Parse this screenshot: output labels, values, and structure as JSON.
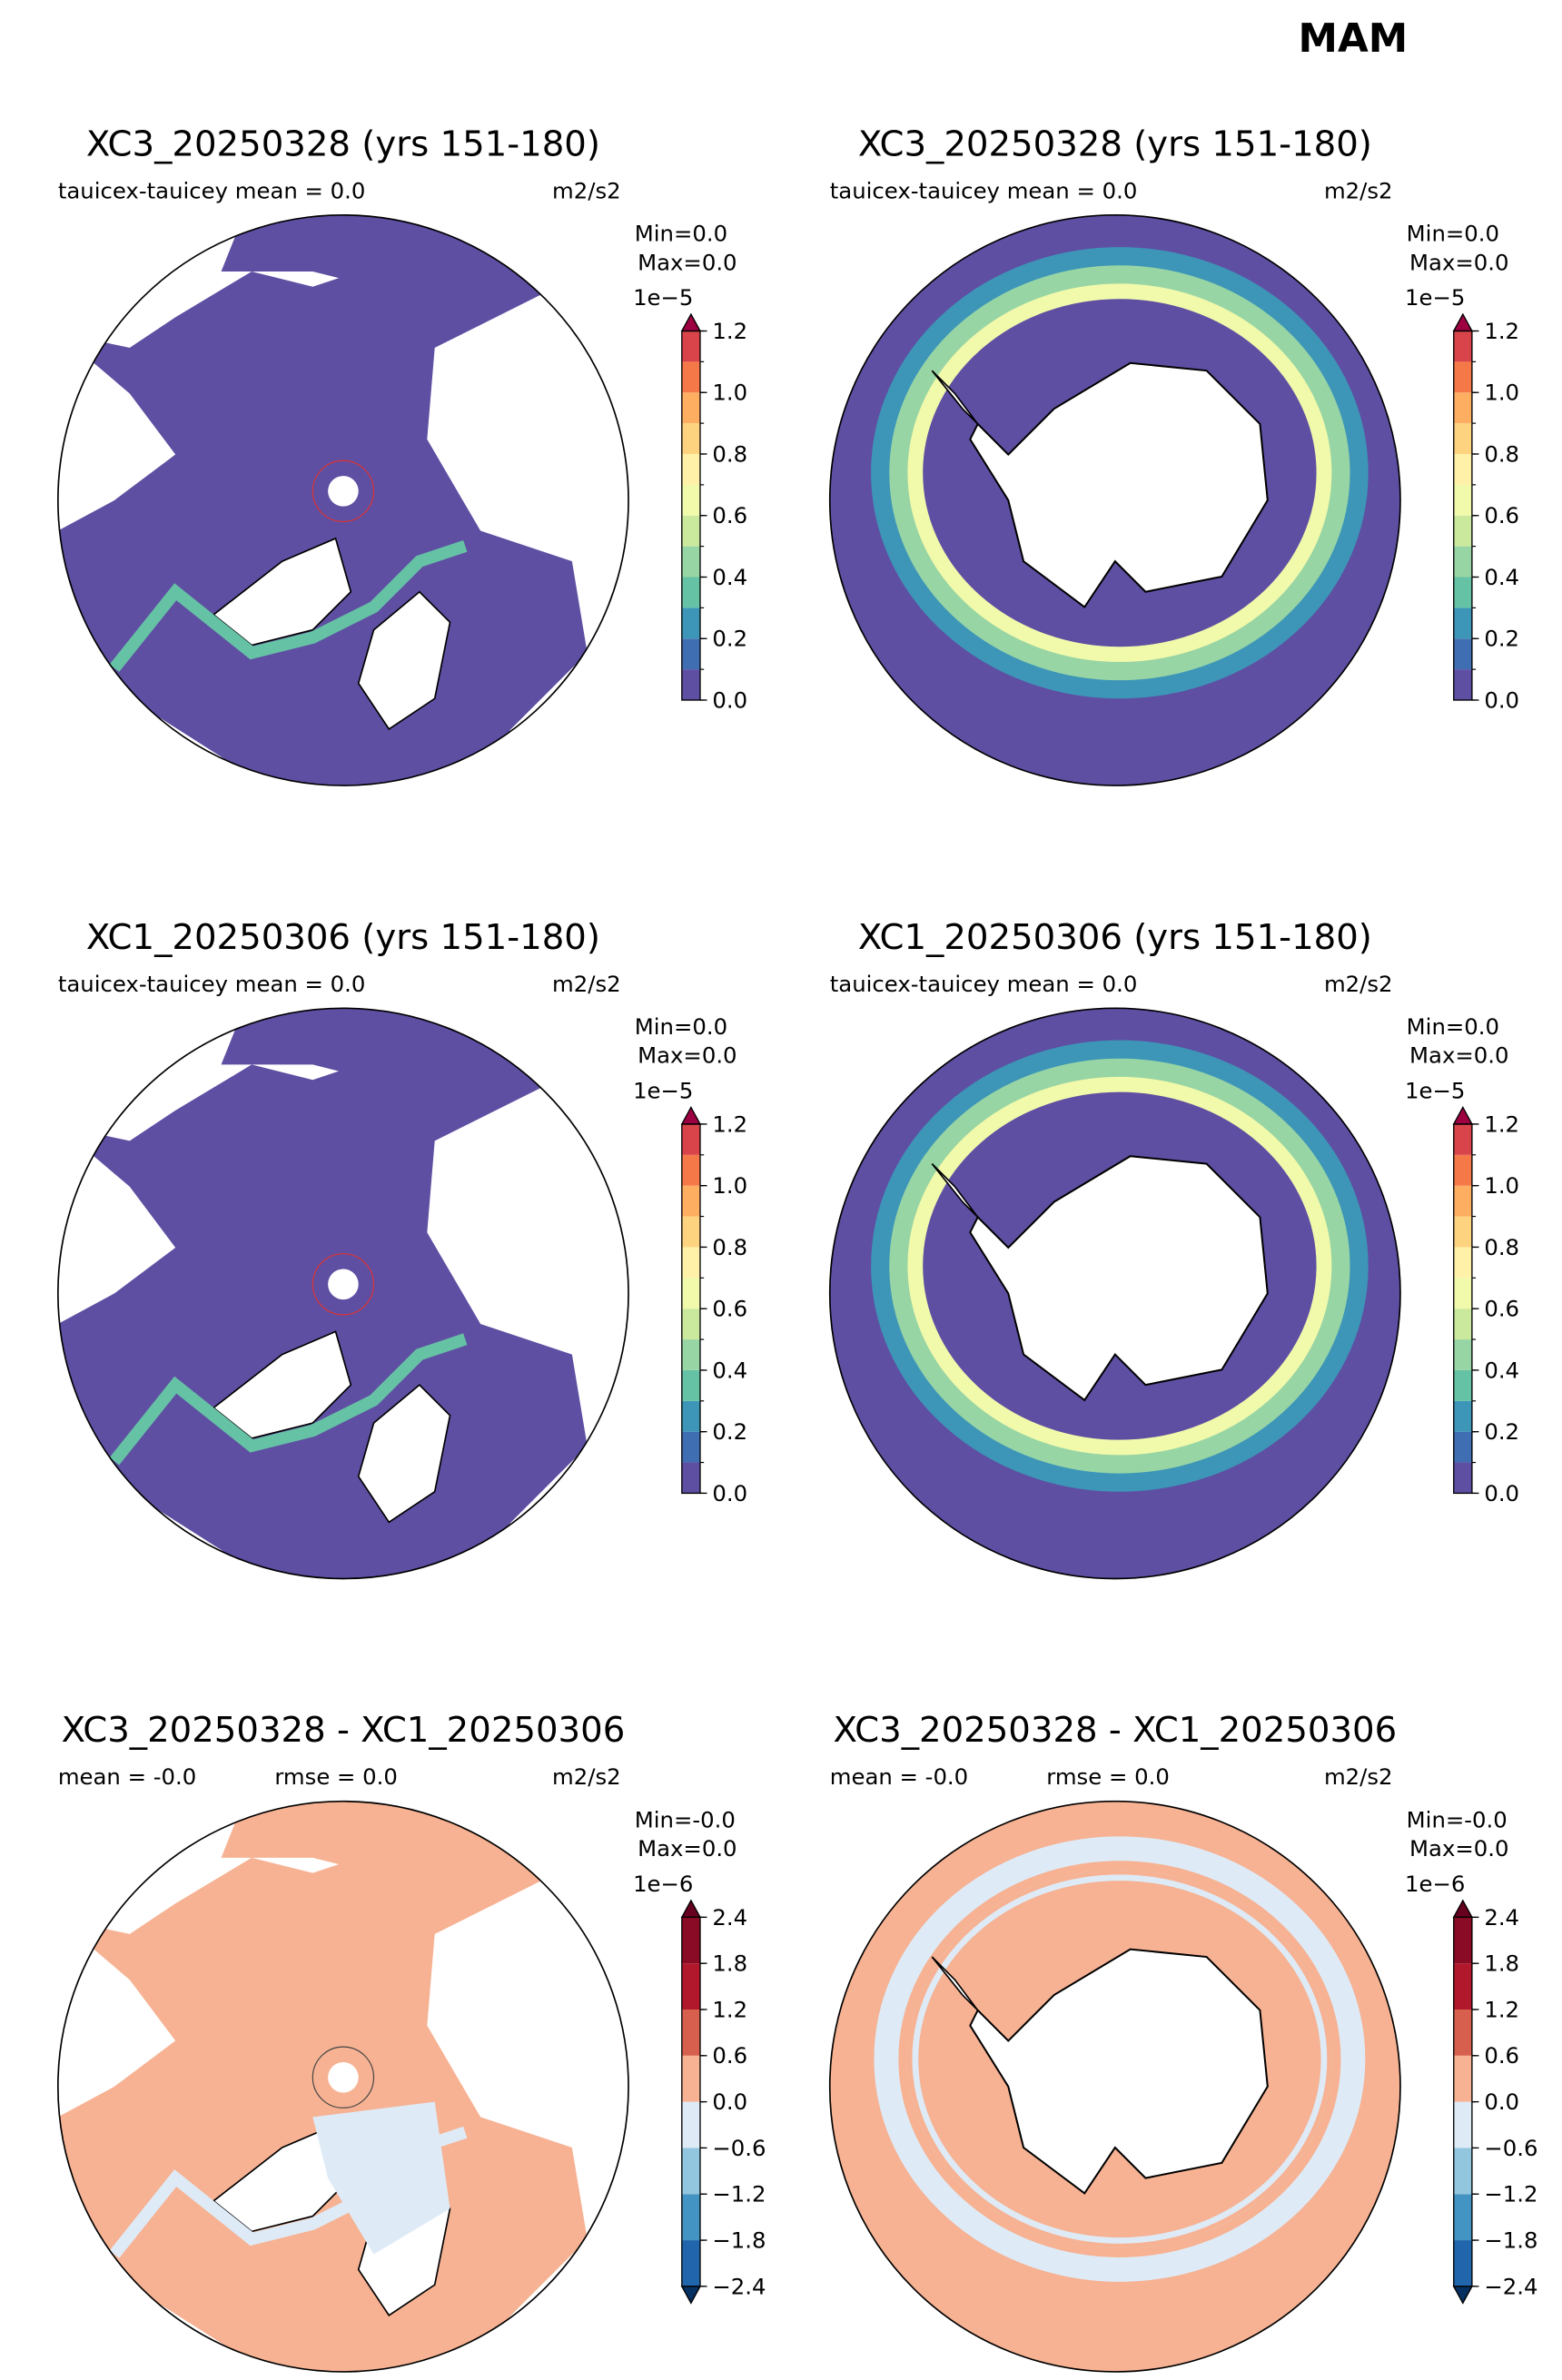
{
  "title": "MAM",
  "panels": [
    {
      "title": "XC3_20250328 (yrs 151-180)",
      "stats": [
        "tauicex-tauicey  mean = 0.0"
      ],
      "units": "m2/s2",
      "min": "Min=0.0",
      "max": "Max=0.0",
      "colorbar": {
        "exponent": "1e−5",
        "levels": [
          0,
          0.1,
          0.2,
          0.3,
          0.4,
          0.5,
          0.6,
          0.7,
          0.8,
          0.9,
          1.0,
          1.1,
          1.2
        ],
        "colors": [
          "#5e4fa2",
          "#3f6fb2",
          "#3d96b8",
          "#66c2a5",
          "#98d5a4",
          "#cbe99d",
          "#f1f9ab",
          "#fff1a8",
          "#fed380",
          "#fdae61",
          "#f57848",
          "#d9444b"
        ],
        "over_color": "#9e0142",
        "ticks": [
          {
            "value": 0,
            "label": "0.0"
          },
          {
            "value": 0.2,
            "label": "0.2"
          },
          {
            "value": 0.4,
            "label": "0.4"
          },
          {
            "value": 0.6,
            "label": "0.6"
          },
          {
            "value": 0.8,
            "label": "0.8"
          },
          {
            "value": 1.0,
            "label": "1.0"
          },
          {
            "value": 1.2,
            "label": "1.2"
          }
        ]
      }
    },
    {
      "title": "XC3_20250328 (yrs 151-180)",
      "stats": [
        "tauicex-tauicey  mean = 0.0"
      ],
      "units": "m2/s2",
      "min": "Min=0.0",
      "max": "Max=0.0",
      "colorbar": {
        "exponent": "1e−5",
        "levels": [
          0,
          0.1,
          0.2,
          0.3,
          0.4,
          0.5,
          0.6,
          0.7,
          0.8,
          0.9,
          1.0,
          1.1,
          1.2
        ],
        "colors": [
          "#5e4fa2",
          "#3f6fb2",
          "#3d96b8",
          "#66c2a5",
          "#98d5a4",
          "#cbe99d",
          "#f1f9ab",
          "#fff1a8",
          "#fed380",
          "#fdae61",
          "#f57848",
          "#d9444b"
        ],
        "over_color": "#9e0142",
        "ticks": [
          {
            "value": 0,
            "label": "0.0"
          },
          {
            "value": 0.2,
            "label": "0.2"
          },
          {
            "value": 0.4,
            "label": "0.4"
          },
          {
            "value": 0.6,
            "label": "0.6"
          },
          {
            "value": 0.8,
            "label": "0.8"
          },
          {
            "value": 1.0,
            "label": "1.0"
          },
          {
            "value": 1.2,
            "label": "1.2"
          }
        ]
      }
    },
    {
      "title": "XC1_20250306 (yrs 151-180)",
      "stats": [
        "tauicex-tauicey  mean = 0.0"
      ],
      "units": "m2/s2",
      "min": "Min=0.0",
      "max": "Max=0.0",
      "colorbar": {
        "exponent": "1e−5",
        "levels": [
          0,
          0.1,
          0.2,
          0.3,
          0.4,
          0.5,
          0.6,
          0.7,
          0.8,
          0.9,
          1.0,
          1.1,
          1.2
        ],
        "colors": [
          "#5e4fa2",
          "#3f6fb2",
          "#3d96b8",
          "#66c2a5",
          "#98d5a4",
          "#cbe99d",
          "#f1f9ab",
          "#fff1a8",
          "#fed380",
          "#fdae61",
          "#f57848",
          "#d9444b"
        ],
        "over_color": "#9e0142",
        "ticks": [
          {
            "value": 0,
            "label": "0.0"
          },
          {
            "value": 0.2,
            "label": "0.2"
          },
          {
            "value": 0.4,
            "label": "0.4"
          },
          {
            "value": 0.6,
            "label": "0.6"
          },
          {
            "value": 0.8,
            "label": "0.8"
          },
          {
            "value": 1.0,
            "label": "1.0"
          },
          {
            "value": 1.2,
            "label": "1.2"
          }
        ]
      }
    },
    {
      "title": "XC1_20250306 (yrs 151-180)",
      "stats": [
        "tauicex-tauicey  mean = 0.0"
      ],
      "units": "m2/s2",
      "min": "Min=0.0",
      "max": "Max=0.0",
      "colorbar": {
        "exponent": "1e−5",
        "levels": [
          0,
          0.1,
          0.2,
          0.3,
          0.4,
          0.5,
          0.6,
          0.7,
          0.8,
          0.9,
          1.0,
          1.1,
          1.2
        ],
        "colors": [
          "#5e4fa2",
          "#3f6fb2",
          "#3d96b8",
          "#66c2a5",
          "#98d5a4",
          "#cbe99d",
          "#f1f9ab",
          "#fff1a8",
          "#fed380",
          "#fdae61",
          "#f57848",
          "#d9444b"
        ],
        "over_color": "#9e0142",
        "ticks": [
          {
            "value": 0,
            "label": "0.0"
          },
          {
            "value": 0.2,
            "label": "0.2"
          },
          {
            "value": 0.4,
            "label": "0.4"
          },
          {
            "value": 0.6,
            "label": "0.6"
          },
          {
            "value": 0.8,
            "label": "0.8"
          },
          {
            "value": 1.0,
            "label": "1.0"
          },
          {
            "value": 1.2,
            "label": "1.2"
          }
        ]
      }
    },
    {
      "title": "XC3_20250328 - XC1_20250306",
      "stats": [
        "mean = -0.0",
        "rmse = 0.0"
      ],
      "units": "m2/s2",
      "min": "Min=-0.0",
      "max": "Max=0.0",
      "colorbar": {
        "exponent": "1e−6",
        "levels": [
          -2.4,
          -1.8,
          -1.2,
          -0.6,
          0,
          0.6,
          1.2,
          1.8,
          2.4
        ],
        "colors": [
          "#2166ac",
          "#4393c3",
          "#92c5de",
          "#deebf7",
          "#f6b293",
          "#d6604d",
          "#b2182b",
          "#8a0b25"
        ],
        "under_color": "#053061",
        "over_color": "#67001f",
        "ticks": [
          {
            "value": -2.4,
            "label": "−2.4"
          },
          {
            "value": -1.8,
            "label": "−1.8"
          },
          {
            "value": -1.2,
            "label": "−1.2"
          },
          {
            "value": -0.6,
            "label": "−0.6"
          },
          {
            "value": 0,
            "label": "0.0"
          },
          {
            "value": 0.6,
            "label": "0.6"
          },
          {
            "value": 1.2,
            "label": "1.2"
          },
          {
            "value": 1.8,
            "label": "1.8"
          },
          {
            "value": 2.4,
            "label": "2.4"
          }
        ]
      }
    },
    {
      "title": "XC3_20250328 - XC1_20250306",
      "stats": [
        "mean = -0.0",
        "rmse = 0.0"
      ],
      "units": "m2/s2",
      "min": "Min=-0.0",
      "max": "Max=0.0",
      "colorbar": {
        "exponent": "1e−6",
        "levels": [
          -2.4,
          -1.8,
          -1.2,
          -0.6,
          0,
          0.6,
          1.2,
          1.8,
          2.4
        ],
        "colors": [
          "#2166ac",
          "#4393c3",
          "#92c5de",
          "#deebf7",
          "#f6b293",
          "#d6604d",
          "#b2182b",
          "#8a0b25"
        ],
        "under_color": "#053061",
        "over_color": "#67001f",
        "ticks": [
          {
            "value": -2.4,
            "label": "−2.4"
          },
          {
            "value": -1.8,
            "label": "−1.8"
          },
          {
            "value": -1.2,
            "label": "−1.2"
          },
          {
            "value": -0.6,
            "label": "−0.6"
          },
          {
            "value": 0,
            "label": "0.0"
          },
          {
            "value": 0.6,
            "label": "0.6"
          },
          {
            "value": 1.2,
            "label": "1.2"
          },
          {
            "value": 1.8,
            "label": "1.8"
          },
          {
            "value": 2.4,
            "label": "2.4"
          }
        ]
      }
    }
  ]
}
